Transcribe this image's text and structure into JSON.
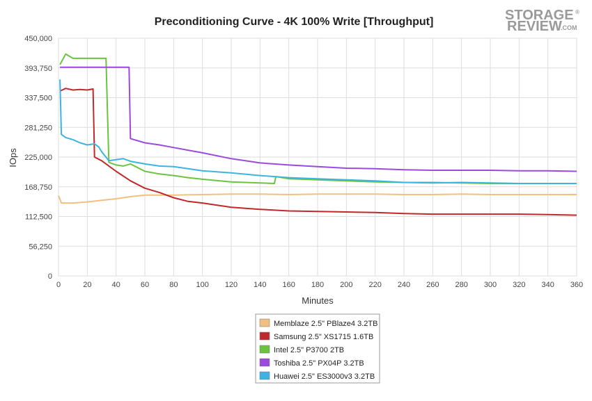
{
  "chart_data": {
    "type": "line",
    "title": "Preconditioning Curve - 4K 100% Write [Throughput]",
    "xlabel": "Minutes",
    "ylabel": "IOps",
    "xlim": [
      0,
      360
    ],
    "ylim": [
      0,
      450000
    ],
    "x_ticks": [
      0,
      20,
      40,
      60,
      80,
      100,
      120,
      140,
      160,
      180,
      200,
      220,
      240,
      260,
      280,
      300,
      320,
      340,
      360
    ],
    "y_ticks": [
      0,
      56250,
      112500,
      168750,
      225000,
      281250,
      337500,
      393750,
      450000
    ],
    "y_tick_labels": [
      "0",
      "56,250",
      "112,500",
      "168,750",
      "225,000",
      "281,250",
      "337,500",
      "393,750",
      "450,000"
    ],
    "grid": true,
    "legend_position": "bottom-center",
    "series": [
      {
        "name": "Memblaze 2.5\" PBlaze4 3.2TB",
        "color": "#f0c080",
        "points": [
          [
            0,
            152000
          ],
          [
            2,
            138000
          ],
          [
            10,
            138000
          ],
          [
            20,
            140000
          ],
          [
            30,
            143000
          ],
          [
            40,
            146000
          ],
          [
            50,
            150000
          ],
          [
            60,
            153000
          ],
          [
            80,
            153000
          ],
          [
            100,
            154000
          ],
          [
            120,
            155000
          ],
          [
            140,
            155000
          ],
          [
            160,
            154000
          ],
          [
            180,
            155000
          ],
          [
            200,
            155000
          ],
          [
            220,
            155000
          ],
          [
            240,
            154000
          ],
          [
            260,
            154000
          ],
          [
            280,
            155000
          ],
          [
            300,
            154000
          ],
          [
            320,
            154000
          ],
          [
            340,
            154000
          ],
          [
            360,
            154000
          ]
        ]
      },
      {
        "name": "Samsung 2.5\" XS1715 1.6TB",
        "color": "#c0282b",
        "points": [
          [
            1,
            350000
          ],
          [
            5,
            355000
          ],
          [
            10,
            352000
          ],
          [
            15,
            353000
          ],
          [
            20,
            352000
          ],
          [
            24,
            354000
          ],
          [
            25,
            225000
          ],
          [
            30,
            218000
          ],
          [
            40,
            198000
          ],
          [
            50,
            180000
          ],
          [
            60,
            166000
          ],
          [
            70,
            158000
          ],
          [
            80,
            148000
          ],
          [
            90,
            141000
          ],
          [
            100,
            138000
          ],
          [
            120,
            130000
          ],
          [
            140,
            126000
          ],
          [
            160,
            123000
          ],
          [
            180,
            122000
          ],
          [
            200,
            121000
          ],
          [
            220,
            120000
          ],
          [
            240,
            118000
          ],
          [
            260,
            117000
          ],
          [
            280,
            117000
          ],
          [
            300,
            117000
          ],
          [
            320,
            117000
          ],
          [
            340,
            116000
          ],
          [
            360,
            115000
          ]
        ]
      },
      {
        "name": "Intel 2.5\" P3700 2TB",
        "color": "#6ac43e",
        "points": [
          [
            1,
            400000
          ],
          [
            5,
            420000
          ],
          [
            10,
            412000
          ],
          [
            20,
            412000
          ],
          [
            30,
            412000
          ],
          [
            33,
            412000
          ],
          [
            35,
            215000
          ],
          [
            40,
            210000
          ],
          [
            45,
            208000
          ],
          [
            50,
            212000
          ],
          [
            55,
            205000
          ],
          [
            60,
            198000
          ],
          [
            70,
            193000
          ],
          [
            80,
            190000
          ],
          [
            90,
            186000
          ],
          [
            100,
            183000
          ],
          [
            120,
            178000
          ],
          [
            140,
            176000
          ],
          [
            150,
            175000
          ],
          [
            151,
            188000
          ],
          [
            160,
            184000
          ],
          [
            180,
            182000
          ],
          [
            200,
            180000
          ],
          [
            220,
            178000
          ],
          [
            240,
            177000
          ],
          [
            260,
            177000
          ],
          [
            280,
            176000
          ],
          [
            300,
            175000
          ],
          [
            320,
            175000
          ],
          [
            340,
            175000
          ],
          [
            360,
            175000
          ]
        ]
      },
      {
        "name": "Toshiba 2.5\" PX04P 3.2TB",
        "color": "#9b4ae0",
        "points": [
          [
            1,
            395000
          ],
          [
            5,
            395000
          ],
          [
            10,
            395000
          ],
          [
            20,
            395000
          ],
          [
            30,
            395000
          ],
          [
            40,
            395000
          ],
          [
            49,
            395000
          ],
          [
            50,
            260000
          ],
          [
            60,
            252000
          ],
          [
            70,
            248000
          ],
          [
            80,
            243000
          ],
          [
            90,
            238000
          ],
          [
            100,
            233000
          ],
          [
            120,
            222000
          ],
          [
            140,
            214000
          ],
          [
            160,
            210000
          ],
          [
            180,
            207000
          ],
          [
            200,
            204000
          ],
          [
            220,
            203000
          ],
          [
            240,
            201000
          ],
          [
            260,
            200000
          ],
          [
            280,
            200000
          ],
          [
            300,
            200000
          ],
          [
            320,
            199000
          ],
          [
            340,
            199000
          ],
          [
            360,
            198000
          ]
        ]
      },
      {
        "name": "Huawei 2.5\" ES3000v3 3.2TB",
        "color": "#3db3e2",
        "points": [
          [
            1,
            372000
          ],
          [
            2,
            268000
          ],
          [
            5,
            262000
          ],
          [
            10,
            258000
          ],
          [
            15,
            252000
          ],
          [
            20,
            248000
          ],
          [
            25,
            250000
          ],
          [
            28,
            244000
          ],
          [
            30,
            235000
          ],
          [
            35,
            218000
          ],
          [
            40,
            220000
          ],
          [
            45,
            222000
          ],
          [
            50,
            217000
          ],
          [
            60,
            212000
          ],
          [
            70,
            208000
          ],
          [
            80,
            207000
          ],
          [
            90,
            203000
          ],
          [
            100,
            199000
          ],
          [
            120,
            195000
          ],
          [
            140,
            190000
          ],
          [
            160,
            186000
          ],
          [
            180,
            184000
          ],
          [
            200,
            182000
          ],
          [
            220,
            180000
          ],
          [
            240,
            177000
          ],
          [
            260,
            176000
          ],
          [
            280,
            177000
          ],
          [
            300,
            176000
          ],
          [
            320,
            175000
          ],
          [
            340,
            175000
          ],
          [
            360,
            175000
          ]
        ]
      }
    ]
  },
  "logo": {
    "line1": "STORAGE",
    "line2": "REVIEW",
    "suffix": ".COM",
    "mark": "®"
  }
}
